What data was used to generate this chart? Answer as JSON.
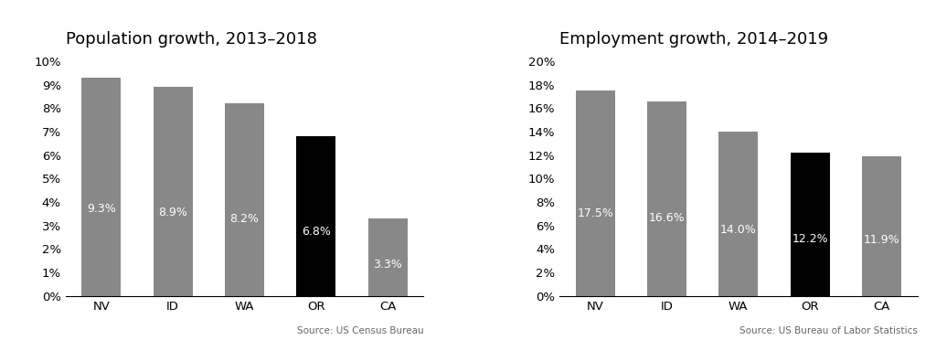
{
  "left_title": "Population growth, 2013–2018",
  "left_categories": [
    "NV",
    "ID",
    "WA",
    "OR",
    "CA"
  ],
  "left_values": [
    9.3,
    8.9,
    8.2,
    6.8,
    3.3
  ],
  "left_colors": [
    "#888888",
    "#888888",
    "#888888",
    "#000000",
    "#888888"
  ],
  "left_ylim": [
    0,
    10
  ],
  "left_yticks": [
    0,
    1,
    2,
    3,
    4,
    5,
    6,
    7,
    8,
    9,
    10
  ],
  "left_ytick_labels": [
    "0%",
    "1%",
    "2%",
    "3%",
    "4%",
    "5%",
    "6%",
    "7%",
    "8%",
    "9%",
    "10%"
  ],
  "left_source": "Source: US Census Bureau",
  "right_title": "Employment growth, 2014–2019",
  "right_categories": [
    "NV",
    "ID",
    "WA",
    "OR",
    "CA"
  ],
  "right_values": [
    17.5,
    16.6,
    14.0,
    12.2,
    11.9
  ],
  "right_colors": [
    "#888888",
    "#888888",
    "#888888",
    "#000000",
    "#888888"
  ],
  "right_ylim": [
    0,
    20
  ],
  "right_yticks": [
    0,
    2,
    4,
    6,
    8,
    10,
    12,
    14,
    16,
    18,
    20
  ],
  "right_ytick_labels": [
    "0%",
    "2%",
    "4%",
    "6%",
    "8%",
    "10%",
    "12%",
    "14%",
    "16%",
    "18%",
    "20%"
  ],
  "right_source": "Source: US Bureau of Labor Statistics",
  "bar_label_color": "#ffffff",
  "bar_label_fontsize": 9,
  "bar_width": 0.55,
  "title_fontsize": 13,
  "tick_fontsize": 9.5,
  "source_fontsize": 7.5,
  "background_color": "#ffffff"
}
